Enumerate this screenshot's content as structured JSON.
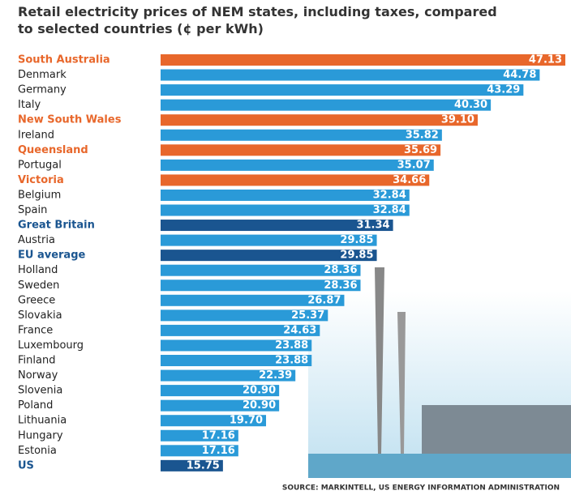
{
  "chart_data": {
    "type": "bar",
    "orientation": "horizontal",
    "title": "Retail electricity prices of NEM states, including taxes, compared to selected countries (¢ per kWh)",
    "source": "SOURCE: MARKINTELL, US ENERGY INFORMATION ADMINISTRATION",
    "categories": [
      "South Australia",
      "Denmark",
      "Germany",
      "Italy",
      "New South Wales",
      "Ireland",
      "Queensland",
      "Portugal",
      "Victoria",
      "Belgium",
      "Spain",
      "Great Britain",
      "Austria",
      "EU average",
      "Holland",
      "Sweden",
      "Greece",
      "Slovakia",
      "France",
      "Luxembourg",
      "Finland",
      "Norway",
      "Slovenia",
      "Poland",
      "Lithuania",
      "Hungary",
      "Estonia",
      "US"
    ],
    "values": [
      47.13,
      44.78,
      43.29,
      40.3,
      39.1,
      35.82,
      35.69,
      35.07,
      34.66,
      32.84,
      32.84,
      31.34,
      29.85,
      29.85,
      28.36,
      28.36,
      26.87,
      25.37,
      24.63,
      23.88,
      23.88,
      22.39,
      20.9,
      20.9,
      19.7,
      17.16,
      17.16,
      15.75
    ],
    "value_labels": [
      "47.13",
      "44.78",
      "43.29",
      "40.30",
      "39.10",
      "35.82",
      "35.69",
      "35.07",
      "34.66",
      "32.84",
      "32.84",
      "31.34",
      "29.85",
      "29.85",
      "28.36",
      "28.36",
      "26.87",
      "25.37",
      "24.63",
      "23.88",
      "23.88",
      "22.39",
      "20.90",
      "20.90",
      "19.70",
      "17.16",
      "17.16",
      "15.75"
    ],
    "colors": [
      "#e8672b",
      "#2a9ad8",
      "#2a9ad8",
      "#2a9ad8",
      "#e8672b",
      "#2a9ad8",
      "#e8672b",
      "#2a9ad8",
      "#e8672b",
      "#2a9ad8",
      "#2a9ad8",
      "#1a5590",
      "#2a9ad8",
      "#1a5590",
      "#2a9ad8",
      "#2a9ad8",
      "#2a9ad8",
      "#2a9ad8",
      "#2a9ad8",
      "#2a9ad8",
      "#2a9ad8",
      "#2a9ad8",
      "#2a9ad8",
      "#2a9ad8",
      "#2a9ad8",
      "#2a9ad8",
      "#2a9ad8",
      "#1a5590"
    ],
    "label_colors": [
      "#e8672b",
      "#222",
      "#222",
      "#222",
      "#e8672b",
      "#222",
      "#e8672b",
      "#222",
      "#e8672b",
      "#222",
      "#222",
      "#1a5590",
      "#222",
      "#1a5590",
      "#222",
      "#222",
      "#222",
      "#222",
      "#222",
      "#222",
      "#222",
      "#222",
      "#222",
      "#222",
      "#222",
      "#222",
      "#222",
      "#1a5590"
    ]
  }
}
